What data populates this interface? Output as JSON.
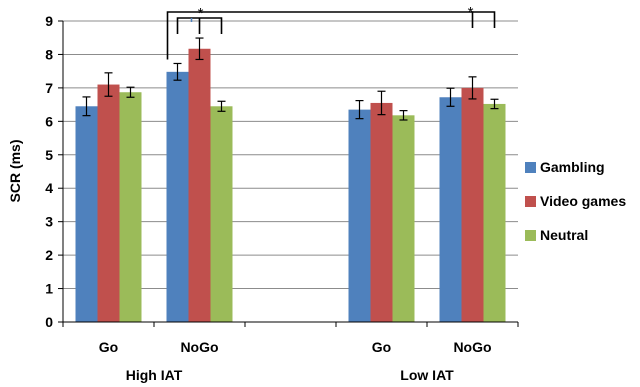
{
  "chart_data": {
    "type": "bar",
    "ylabel": "SCR (ms)",
    "ylim": [
      0,
      9
    ],
    "yticks": [
      0,
      1,
      2,
      3,
      4,
      5,
      6,
      7,
      8,
      9
    ],
    "grid": true,
    "legend_position": "right",
    "groups": [
      {
        "label": "High IAT",
        "categories": [
          "Go",
          "NoGo"
        ]
      },
      {
        "label": "Low IAT",
        "categories": [
          "Go",
          "NoGo"
        ]
      }
    ],
    "categories": [
      "Go",
      "NoGo",
      "",
      "Go",
      "NoGo"
    ],
    "series": [
      {
        "name": "Gambling",
        "color": "#4F81BD",
        "values": [
          6.45,
          7.48,
          null,
          6.35,
          6.72
        ],
        "errors": [
          0.28,
          0.25,
          null,
          0.27,
          0.27
        ]
      },
      {
        "name": "Video games",
        "color": "#C0504D",
        "values": [
          7.1,
          8.17,
          null,
          6.55,
          7.0
        ],
        "errors": [
          0.35,
          0.32,
          null,
          0.35,
          0.33
        ]
      },
      {
        "name": "Neutral",
        "color": "#9BBB59",
        "values": [
          6.87,
          6.45,
          null,
          6.18,
          6.52
        ],
        "errors": [
          0.15,
          0.15,
          null,
          0.14,
          0.14
        ]
      }
    ],
    "annotations": [
      "*",
      "*"
    ]
  }
}
